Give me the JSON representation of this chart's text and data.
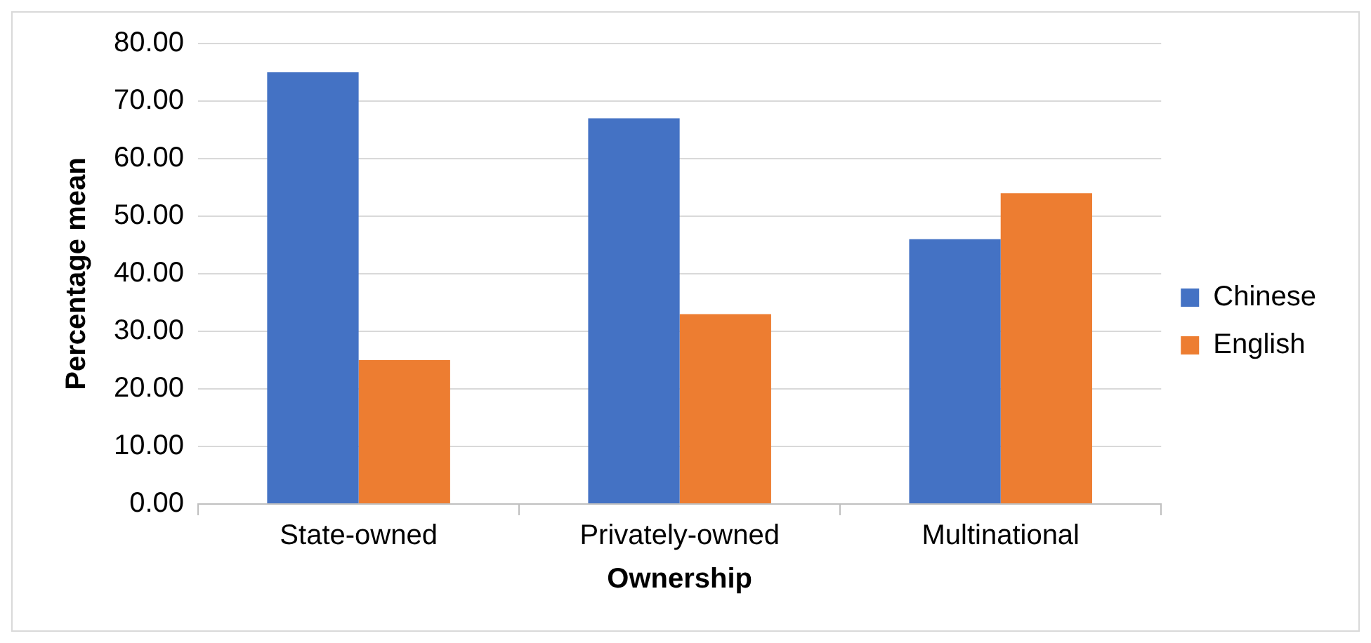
{
  "chart_data": {
    "type": "bar",
    "xlabel": "Ownership",
    "ylabel": "Percentage mean",
    "categories": [
      "State-owned",
      "Privately-owned",
      "Multinational"
    ],
    "series": [
      {
        "name": "Chinese",
        "color": "#4472c4",
        "values": [
          75,
          67,
          46
        ]
      },
      {
        "name": "English",
        "color": "#ed7d31",
        "values": [
          25,
          33,
          54
        ]
      }
    ],
    "ylim": [
      0,
      80
    ],
    "yticks": [
      {
        "value": 0,
        "label": "0.00"
      },
      {
        "value": 10,
        "label": "10.00"
      },
      {
        "value": 20,
        "label": "20.00"
      },
      {
        "value": 30,
        "label": "30.00"
      },
      {
        "value": 40,
        "label": "40.00"
      },
      {
        "value": 50,
        "label": "50.00"
      },
      {
        "value": 60,
        "label": "60.00"
      },
      {
        "value": 70,
        "label": "70.00"
      },
      {
        "value": 80,
        "label": "80.00"
      }
    ],
    "grid": "y",
    "legend": "right"
  }
}
